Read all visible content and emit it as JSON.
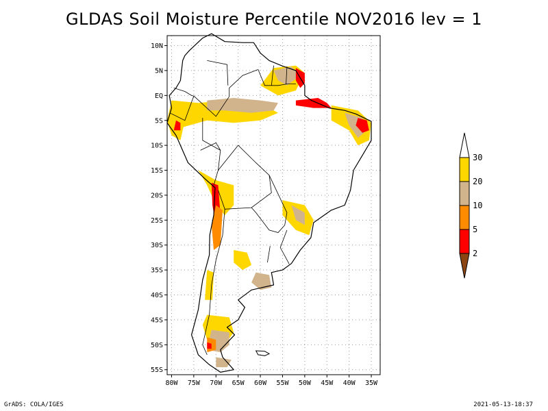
{
  "title": "GLDAS Soil Moisture Percentile NOV2016 lev = 1",
  "footer": {
    "left": "GrADS: COLA/IGES",
    "right": "2021-05-13-18:37"
  },
  "map": {
    "lon_range": [
      -81,
      -33
    ],
    "lat_range": [
      -56,
      12
    ],
    "lat_ticks": [
      {
        "value": 10,
        "label": "10N"
      },
      {
        "value": 5,
        "label": "5N"
      },
      {
        "value": 0,
        "label": "EQ"
      },
      {
        "value": -5,
        "label": "5S"
      },
      {
        "value": -10,
        "label": "10S"
      },
      {
        "value": -15,
        "label": "15S"
      },
      {
        "value": -20,
        "label": "20S"
      },
      {
        "value": -25,
        "label": "25S"
      },
      {
        "value": -30,
        "label": "30S"
      },
      {
        "value": -35,
        "label": "35S"
      },
      {
        "value": -40,
        "label": "40S"
      },
      {
        "value": -45,
        "label": "45S"
      },
      {
        "value": -50,
        "label": "50S"
      },
      {
        "value": -55,
        "label": "55S"
      }
    ],
    "lon_ticks": [
      {
        "value": -80,
        "label": "80W"
      },
      {
        "value": -75,
        "label": "75W"
      },
      {
        "value": -70,
        "label": "70W"
      },
      {
        "value": -65,
        "label": "65W"
      },
      {
        "value": -60,
        "label": "60W"
      },
      {
        "value": -55,
        "label": "55W"
      },
      {
        "value": -50,
        "label": "50W"
      },
      {
        "value": -45,
        "label": "45W"
      },
      {
        "value": -40,
        "label": "40W"
      },
      {
        "value": -35,
        "label": "35W"
      }
    ],
    "grid": true,
    "grid_style": "dotted"
  },
  "legend": {
    "placement": "right",
    "classes": [
      {
        "color": "#8b4513",
        "label": "2"
      },
      {
        "color": "#ff0000",
        "label": "5"
      },
      {
        "color": "#ff8c00",
        "label": "10"
      },
      {
        "color": "#d2b48c",
        "label": "20"
      },
      {
        "color": "#ffd700",
        "label": "30"
      },
      {
        "color": "#ffffff",
        "label": ""
      }
    ]
  },
  "colors": {
    "lt2": "#8b4513",
    "p2_5": "#ff0000",
    "p5_10": "#ff8c00",
    "p10_20": "#d2b48c",
    "p20_30": "#ffd700"
  },
  "regions": [
    {
      "name": "northern-amazon-band",
      "cls": "p20_30",
      "points": [
        [
          -80,
          -1
        ],
        [
          -74,
          -1.5
        ],
        [
          -68,
          -1
        ],
        [
          -62,
          -1.5
        ],
        [
          -58,
          -2.5
        ],
        [
          -56,
          -3.5
        ],
        [
          -60,
          -5
        ],
        [
          -66,
          -5.5
        ],
        [
          -72,
          -5
        ],
        [
          -76,
          -6
        ],
        [
          -80,
          -7
        ]
      ]
    },
    {
      "name": "amazon-band-tan",
      "cls": "p10_20",
      "points": [
        [
          -72,
          -1
        ],
        [
          -66,
          -0.5
        ],
        [
          -60,
          -1
        ],
        [
          -56,
          -1.5
        ],
        [
          -57,
          -3
        ],
        [
          -62,
          -3.5
        ],
        [
          -68,
          -3
        ],
        [
          -72,
          -3
        ]
      ]
    },
    {
      "name": "guiana-yellow",
      "cls": "p20_30",
      "points": [
        [
          -60,
          2
        ],
        [
          -57,
          5.5
        ],
        [
          -52,
          6
        ],
        [
          -50,
          4.5
        ],
        [
          -52,
          1
        ],
        [
          -56,
          0
        ]
      ]
    },
    {
      "name": "guiana-tan",
      "cls": "p10_20",
      "points": [
        [
          -57,
          5
        ],
        [
          -53,
          5.8
        ],
        [
          -51,
          4
        ],
        [
          -54,
          2
        ],
        [
          -56,
          3
        ]
      ]
    },
    {
      "name": "guiana-red",
      "cls": "p2_5",
      "points": [
        [
          -52,
          5.5
        ],
        [
          -50,
          4.5
        ],
        [
          -50,
          2.5
        ],
        [
          -51,
          1.5
        ],
        [
          -52,
          3
        ]
      ]
    },
    {
      "name": "amazon-mouth-red",
      "cls": "p2_5",
      "points": [
        [
          -52,
          -1
        ],
        [
          -47,
          -0.5
        ],
        [
          -45,
          -1.5
        ],
        [
          -44,
          -2.5
        ],
        [
          -48,
          -2.5
        ],
        [
          -52,
          -2
        ]
      ]
    },
    {
      "name": "northeast-brazil-yellow",
      "cls": "p20_30",
      "points": [
        [
          -44,
          -2
        ],
        [
          -38,
          -3
        ],
        [
          -35,
          -5.5
        ],
        [
          -35.5,
          -9
        ],
        [
          -38,
          -10
        ],
        [
          -40,
          -7
        ],
        [
          -44,
          -5
        ]
      ]
    },
    {
      "name": "northeast-brazil-tan",
      "cls": "p10_20",
      "points": [
        [
          -41,
          -3.5
        ],
        [
          -37,
          -4.5
        ],
        [
          -36,
          -7
        ],
        [
          -38,
          -8.5
        ],
        [
          -40,
          -6
        ]
      ]
    },
    {
      "name": "northeast-brazil-red",
      "cls": "p2_5",
      "points": [
        [
          -38,
          -4.5
        ],
        [
          -36,
          -5
        ],
        [
          -35.5,
          -7
        ],
        [
          -37,
          -7.5
        ],
        [
          -38.5,
          -6
        ]
      ]
    },
    {
      "name": "ecuador-peru-coast",
      "cls": "p20_30",
      "points": [
        [
          -80,
          -1
        ],
        [
          -78,
          -2
        ],
        [
          -77,
          -5
        ],
        [
          -78,
          -9
        ],
        [
          -80,
          -8
        ],
        [
          -81,
          -5
        ]
      ]
    },
    {
      "name": "peru-red",
      "cls": "p2_5",
      "points": [
        [
          -79,
          -5
        ],
        [
          -78,
          -5.5
        ],
        [
          -78,
          -7
        ],
        [
          -79.5,
          -7
        ]
      ]
    },
    {
      "name": "altiplano-yellow",
      "cls": "p20_30",
      "points": [
        [
          -74,
          -15
        ],
        [
          -70,
          -17
        ],
        [
          -66,
          -18
        ],
        [
          -66,
          -22
        ],
        [
          -68,
          -24
        ],
        [
          -70,
          -22
        ],
        [
          -72,
          -18
        ]
      ]
    },
    {
      "name": "altiplano-red",
      "cls": "p2_5",
      "points": [
        [
          -71,
          -17.5
        ],
        [
          -69.5,
          -18
        ],
        [
          -69,
          -24
        ],
        [
          -70,
          -26
        ],
        [
          -70.8,
          -22
        ]
      ]
    },
    {
      "name": "andes-orange",
      "cls": "p5_10",
      "points": [
        [
          -70,
          -22
        ],
        [
          -68.5,
          -23
        ],
        [
          -69,
          -30
        ],
        [
          -70.5,
          -31
        ],
        [
          -71,
          -26
        ]
      ]
    },
    {
      "name": "south-brazil-yellow",
      "cls": "p20_30",
      "points": [
        [
          -55,
          -21
        ],
        [
          -50,
          -22
        ],
        [
          -48,
          -25
        ],
        [
          -49,
          -28
        ],
        [
          -52,
          -27
        ],
        [
          -55,
          -24
        ]
      ]
    },
    {
      "name": "south-brazil-tan",
      "cls": "p10_20",
      "points": [
        [
          -53,
          -22
        ],
        [
          -50,
          -23.5
        ],
        [
          -50,
          -26
        ],
        [
          -52,
          -25
        ]
      ]
    },
    {
      "name": "pampas-tan",
      "cls": "p10_20",
      "points": [
        [
          -61,
          -35.5
        ],
        [
          -58,
          -36
        ],
        [
          -57.5,
          -38.5
        ],
        [
          -60,
          -39
        ],
        [
          -62,
          -37.5
        ]
      ]
    },
    {
      "name": "central-argentina-yellow",
      "cls": "p20_30",
      "points": [
        [
          -66,
          -31
        ],
        [
          -63,
          -31.5
        ],
        [
          -62,
          -34
        ],
        [
          -64,
          -35
        ],
        [
          -66,
          -33.5
        ]
      ]
    },
    {
      "name": "chile-central-yellow",
      "cls": "p20_30",
      "points": [
        [
          -72,
          -35
        ],
        [
          -70.5,
          -35.5
        ],
        [
          -70.8,
          -41
        ],
        [
          -72.5,
          -41
        ]
      ]
    },
    {
      "name": "patagonia-yellow",
      "cls": "p20_30",
      "points": [
        [
          -72,
          -44
        ],
        [
          -67,
          -44.5
        ],
        [
          -66,
          -47.5
        ],
        [
          -68,
          -50
        ],
        [
          -72,
          -49
        ],
        [
          -73,
          -46
        ]
      ]
    },
    {
      "name": "patagonia-tan",
      "cls": "p10_20",
      "points": [
        [
          -71,
          -47
        ],
        [
          -67,
          -47.5
        ],
        [
          -67,
          -50
        ],
        [
          -69,
          -51.5
        ],
        [
          -72,
          -51
        ]
      ]
    },
    {
      "name": "patagonia-orange",
      "cls": "p5_10",
      "points": [
        [
          -72,
          -48.5
        ],
        [
          -70,
          -49
        ],
        [
          -70,
          -51
        ],
        [
          -72,
          -51.5
        ]
      ]
    },
    {
      "name": "patagonia-red",
      "cls": "p2_5",
      "points": [
        [
          -72,
          -49.5
        ],
        [
          -71,
          -49.8
        ],
        [
          -71,
          -50.8
        ],
        [
          -72,
          -50.8
        ]
      ]
    },
    {
      "name": "tierra-del-fuego-tan",
      "cls": "p10_20",
      "points": [
        [
          -70,
          -52.5
        ],
        [
          -66.5,
          -53
        ],
        [
          -67.5,
          -54.5
        ],
        [
          -70,
          -54.5
        ]
      ]
    }
  ],
  "outline": [
    [
      -77,
      8
    ],
    [
      -76,
      9
    ],
    [
      -73,
      11.5
    ],
    [
      -71,
      12.4
    ],
    [
      -68,
      10.8
    ],
    [
      -64,
      10.6
    ],
    [
      -61.5,
      10.6
    ],
    [
      -60,
      8.5
    ],
    [
      -58,
      7
    ],
    [
      -55,
      5.9
    ],
    [
      -52,
      5
    ],
    [
      -50,
      2
    ],
    [
      -50,
      0
    ],
    [
      -48.5,
      -1
    ],
    [
      -44.5,
      -2.5
    ],
    [
      -41,
      -3
    ],
    [
      -38.5,
      -3.7
    ],
    [
      -35,
      -5.2
    ],
    [
      -35,
      -9
    ],
    [
      -37,
      -12
    ],
    [
      -39,
      -15
    ],
    [
      -39.7,
      -19
    ],
    [
      -41,
      -22
    ],
    [
      -44,
      -23
    ],
    [
      -48,
      -25.5
    ],
    [
      -48.6,
      -28.5
    ],
    [
      -51,
      -31
    ],
    [
      -53,
      -33.7
    ],
    [
      -55,
      -35
    ],
    [
      -57.5,
      -35.5
    ],
    [
      -57,
      -38
    ],
    [
      -62,
      -39
    ],
    [
      -65,
      -41
    ],
    [
      -63.5,
      -42.5
    ],
    [
      -65,
      -45
    ],
    [
      -67.5,
      -46.5
    ],
    [
      -65.8,
      -48
    ],
    [
      -69,
      -51
    ],
    [
      -68.5,
      -52.5
    ],
    [
      -66,
      -55
    ],
    [
      -69,
      -55.5
    ],
    [
      -71.5,
      -54
    ],
    [
      -74,
      -52
    ],
    [
      -75.5,
      -48
    ],
    [
      -74,
      -43
    ],
    [
      -73.5,
      -40
    ],
    [
      -73,
      -37
    ],
    [
      -71.5,
      -32
    ],
    [
      -71.4,
      -28
    ],
    [
      -70.5,
      -24
    ],
    [
      -70.2,
      -18.5
    ],
    [
      -72.5,
      -16.7
    ],
    [
      -76.3,
      -13.5
    ],
    [
      -79,
      -8
    ],
    [
      -81,
      -5.5
    ],
    [
      -80,
      -2.5
    ],
    [
      -80.5,
      0
    ],
    [
      -79,
      1.5
    ],
    [
      -78,
      3
    ],
    [
      -77.5,
      7
    ]
  ],
  "falklands": [
    [
      -61,
      -51.2
    ],
    [
      -59,
      -51.3
    ],
    [
      -58,
      -51.8
    ],
    [
      -59,
      -52.2
    ],
    [
      -60.5,
      -52
    ]
  ],
  "borders": [
    [
      [
        -75,
        -0.1
      ],
      [
        -70,
        -4.2
      ],
      [
        -67,
        -0.2
      ],
      [
        -67,
        1.5
      ],
      [
        -64,
        4
      ],
      [
        -60.5,
        5.2
      ]
    ],
    [
      [
        -80.4,
        -3.5
      ],
      [
        -77,
        -5
      ],
      [
        -75,
        -0.1
      ]
    ],
    [
      [
        -73.5,
        -11
      ],
      [
        -70,
        -9.5
      ],
      [
        -69,
        -11
      ],
      [
        -69.5,
        -15
      ],
      [
        -70.5,
        -18
      ]
    ],
    [
      [
        -69.5,
        -15
      ],
      [
        -65,
        -10
      ],
      [
        -61,
        -13.5
      ],
      [
        -58,
        -16
      ],
      [
        -57.5,
        -19.5
      ],
      [
        -62,
        -22.5
      ],
      [
        -68,
        -22.8
      ],
      [
        -69.5,
        -19
      ]
    ],
    [
      [
        -58,
        -16
      ],
      [
        -54,
        -23.5
      ],
      [
        -54.5,
        -26
      ],
      [
        -56,
        -27.5
      ],
      [
        -58,
        -27
      ],
      [
        -61,
        -23.5
      ],
      [
        -62,
        -22.5
      ]
    ],
    [
      [
        -54,
        -27
      ],
      [
        -55.5,
        -30.5
      ],
      [
        -53.5,
        -33.8
      ]
    ],
    [
      [
        -57.8,
        -30.2
      ],
      [
        -58.4,
        -33.5
      ]
    ],
    [
      [
        -68,
        -22.8
      ],
      [
        -68.5,
        -28
      ],
      [
        -70,
        -33
      ],
      [
        -71,
        -38
      ],
      [
        -71.5,
        -44
      ],
      [
        -72.5,
        -48
      ],
      [
        -73,
        -50
      ],
      [
        -72,
        -52
      ]
    ],
    [
      [
        -60.5,
        5.2
      ],
      [
        -59,
        2
      ],
      [
        -56,
        2
      ],
      [
        -54,
        2.3
      ],
      [
        -52,
        2.3
      ]
    ],
    [
      [
        -57,
        6
      ],
      [
        -57.5,
        2
      ]
    ],
    [
      [
        -54,
        5.8
      ],
      [
        -54.2,
        2.3
      ]
    ],
    [
      [
        -69,
        -11
      ],
      [
        -73,
        -9
      ],
      [
        -73,
        -4.5
      ]
    ],
    [
      [
        -79.5,
        1.5
      ],
      [
        -77,
        0.8
      ],
      [
        -75.5,
        0
      ],
      [
        -75,
        -0.1
      ]
    ],
    [
      [
        -72,
        7
      ],
      [
        -67.5,
        6.2
      ],
      [
        -67.3,
        2
      ]
    ]
  ]
}
